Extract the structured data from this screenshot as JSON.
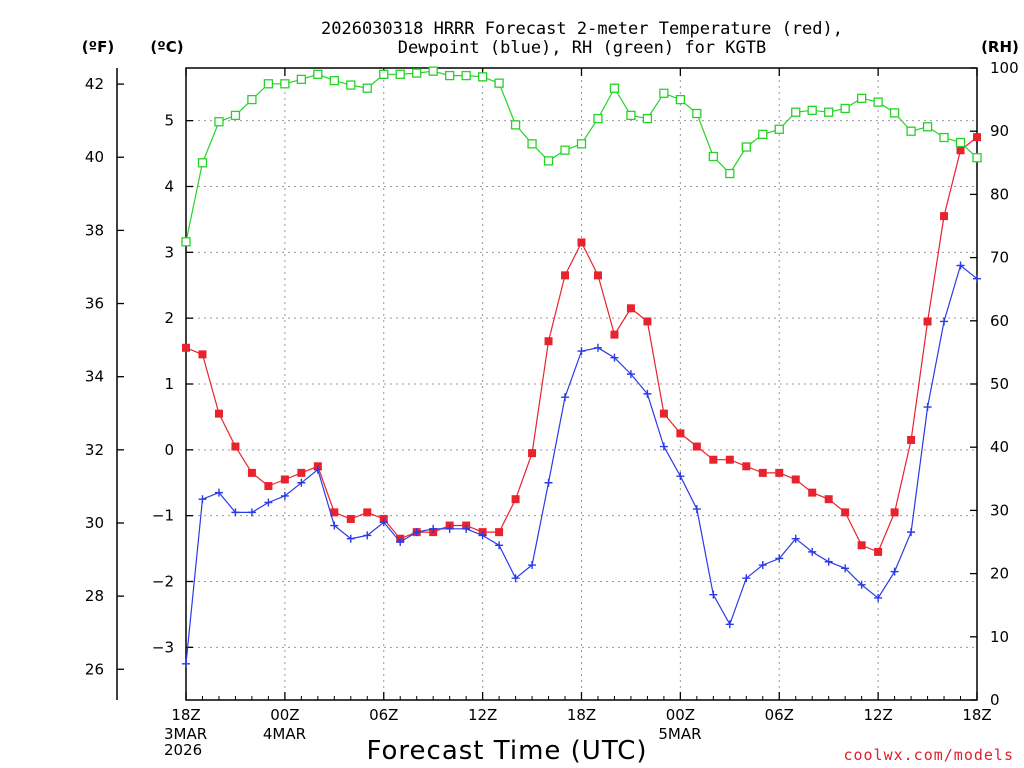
{
  "chart_data": {
    "type": "line",
    "title_lines": [
      "2026030318 HRRR Forecast 2-meter Temperature (red),",
      "Dewpoint (blue), RH (green) for KGTB"
    ],
    "xlabel": "Forecast Time (UTC)",
    "credit": "coolwx.com/models",
    "units": {
      "fahrenheit": "(ºF)",
      "celsius": "(ºC)",
      "rh": "(RH)"
    },
    "x_range": [
      0,
      48
    ],
    "x_ticks": [
      {
        "x": 0,
        "label": "18Z",
        "sub": [
          "3MAR",
          "2026"
        ]
      },
      {
        "x": 6,
        "label": "00Z",
        "sub": [
          "4MAR"
        ]
      },
      {
        "x": 12,
        "label": "06Z",
        "sub": []
      },
      {
        "x": 18,
        "label": "12Z",
        "sub": []
      },
      {
        "x": 24,
        "label": "18Z",
        "sub": []
      },
      {
        "x": 30,
        "label": "00Z",
        "sub": [
          "5MAR"
        ]
      },
      {
        "x": 36,
        "label": "06Z",
        "sub": []
      },
      {
        "x": 42,
        "label": "12Z",
        "sub": []
      },
      {
        "x": 48,
        "label": "18Z",
        "sub": []
      }
    ],
    "celsius_axis": {
      "range": [
        -3.8,
        5.8
      ],
      "ticks": [
        -3,
        -2,
        -1,
        0,
        1,
        2,
        3,
        4,
        5
      ],
      "tick_labels": [
        "−3",
        "−2",
        "−1",
        "0",
        "1",
        "2",
        "3",
        "4",
        "5"
      ]
    },
    "fahrenheit_axis": {
      "range": [
        25.16,
        42.44
      ],
      "ticks": [
        26,
        28,
        30,
        32,
        34,
        36,
        38,
        40,
        42
      ],
      "tick_labels": [
        "26",
        "28",
        "30",
        "32",
        "34",
        "36",
        "38",
        "40",
        "42"
      ]
    },
    "rh_axis": {
      "range": [
        0,
        100
      ],
      "ticks": [
        0,
        10,
        20,
        30,
        40,
        50,
        60,
        70,
        80,
        90,
        100
      ],
      "tick_labels": [
        "0",
        "10",
        "20",
        "30",
        "40",
        "50",
        "60",
        "70",
        "80",
        "90",
        "100"
      ]
    },
    "series": [
      {
        "name": "Temperature",
        "unit": "C",
        "color": "#e8232d",
        "marker": "filled-square",
        "values": [
          1.55,
          1.45,
          0.55,
          0.05,
          -0.35,
          -0.55,
          -0.45,
          -0.35,
          -0.25,
          -0.95,
          -1.05,
          -0.95,
          -1.05,
          -1.35,
          -1.25,
          -1.25,
          -1.15,
          -1.15,
          -1.25,
          -1.25,
          -0.75,
          -0.05,
          1.65,
          2.65,
          3.15,
          2.65,
          1.75,
          2.15,
          1.95,
          0.55,
          0.25,
          0.05,
          -0.15,
          -0.15,
          -0.25,
          -0.35,
          -0.35,
          -0.45,
          -0.65,
          -0.75,
          -0.95,
          -1.45,
          -1.55,
          -0.95,
          0.15,
          1.95,
          3.55,
          4.55,
          4.75
        ]
      },
      {
        "name": "Dewpoint",
        "unit": "C",
        "color": "#2a3be6",
        "marker": "plus",
        "values": [
          -3.25,
          -0.75,
          -0.65,
          -0.95,
          -0.95,
          -0.8,
          -0.7,
          -0.5,
          -0.3,
          -1.15,
          -1.35,
          -1.3,
          -1.1,
          -1.4,
          -1.25,
          -1.2,
          -1.2,
          -1.2,
          -1.3,
          -1.45,
          -1.95,
          -1.75,
          -0.5,
          0.8,
          1.5,
          1.55,
          1.4,
          1.15,
          0.85,
          0.05,
          -0.4,
          -0.9,
          -2.2,
          -2.65,
          -1.95,
          -1.75,
          -1.65,
          -1.35,
          -1.55,
          -1.7,
          -1.8,
          -2.05,
          -2.25,
          -1.85,
          -1.25,
          0.65,
          1.95,
          2.8,
          2.6
        ]
      },
      {
        "name": "RH",
        "unit": "%",
        "color": "#25d327",
        "marker": "open-square",
        "values": [
          72.5,
          85,
          91.5,
          92.5,
          95,
          97.5,
          97.5,
          98.2,
          99,
          98,
          97.3,
          96.8,
          99,
          99,
          99.2,
          99.5,
          98.8,
          98.8,
          98.6,
          97.6,
          91,
          88,
          85.3,
          87,
          88,
          92,
          96.8,
          92.5,
          92,
          96,
          95,
          92.8,
          86,
          83.3,
          87.5,
          89.5,
          90.3,
          93,
          93.3,
          93,
          93.6,
          95.2,
          94.6,
          92.9,
          90,
          90.7,
          89,
          88.2,
          85.8
        ]
      }
    ],
    "grid": true,
    "legend": "none (series identified in title)"
  }
}
